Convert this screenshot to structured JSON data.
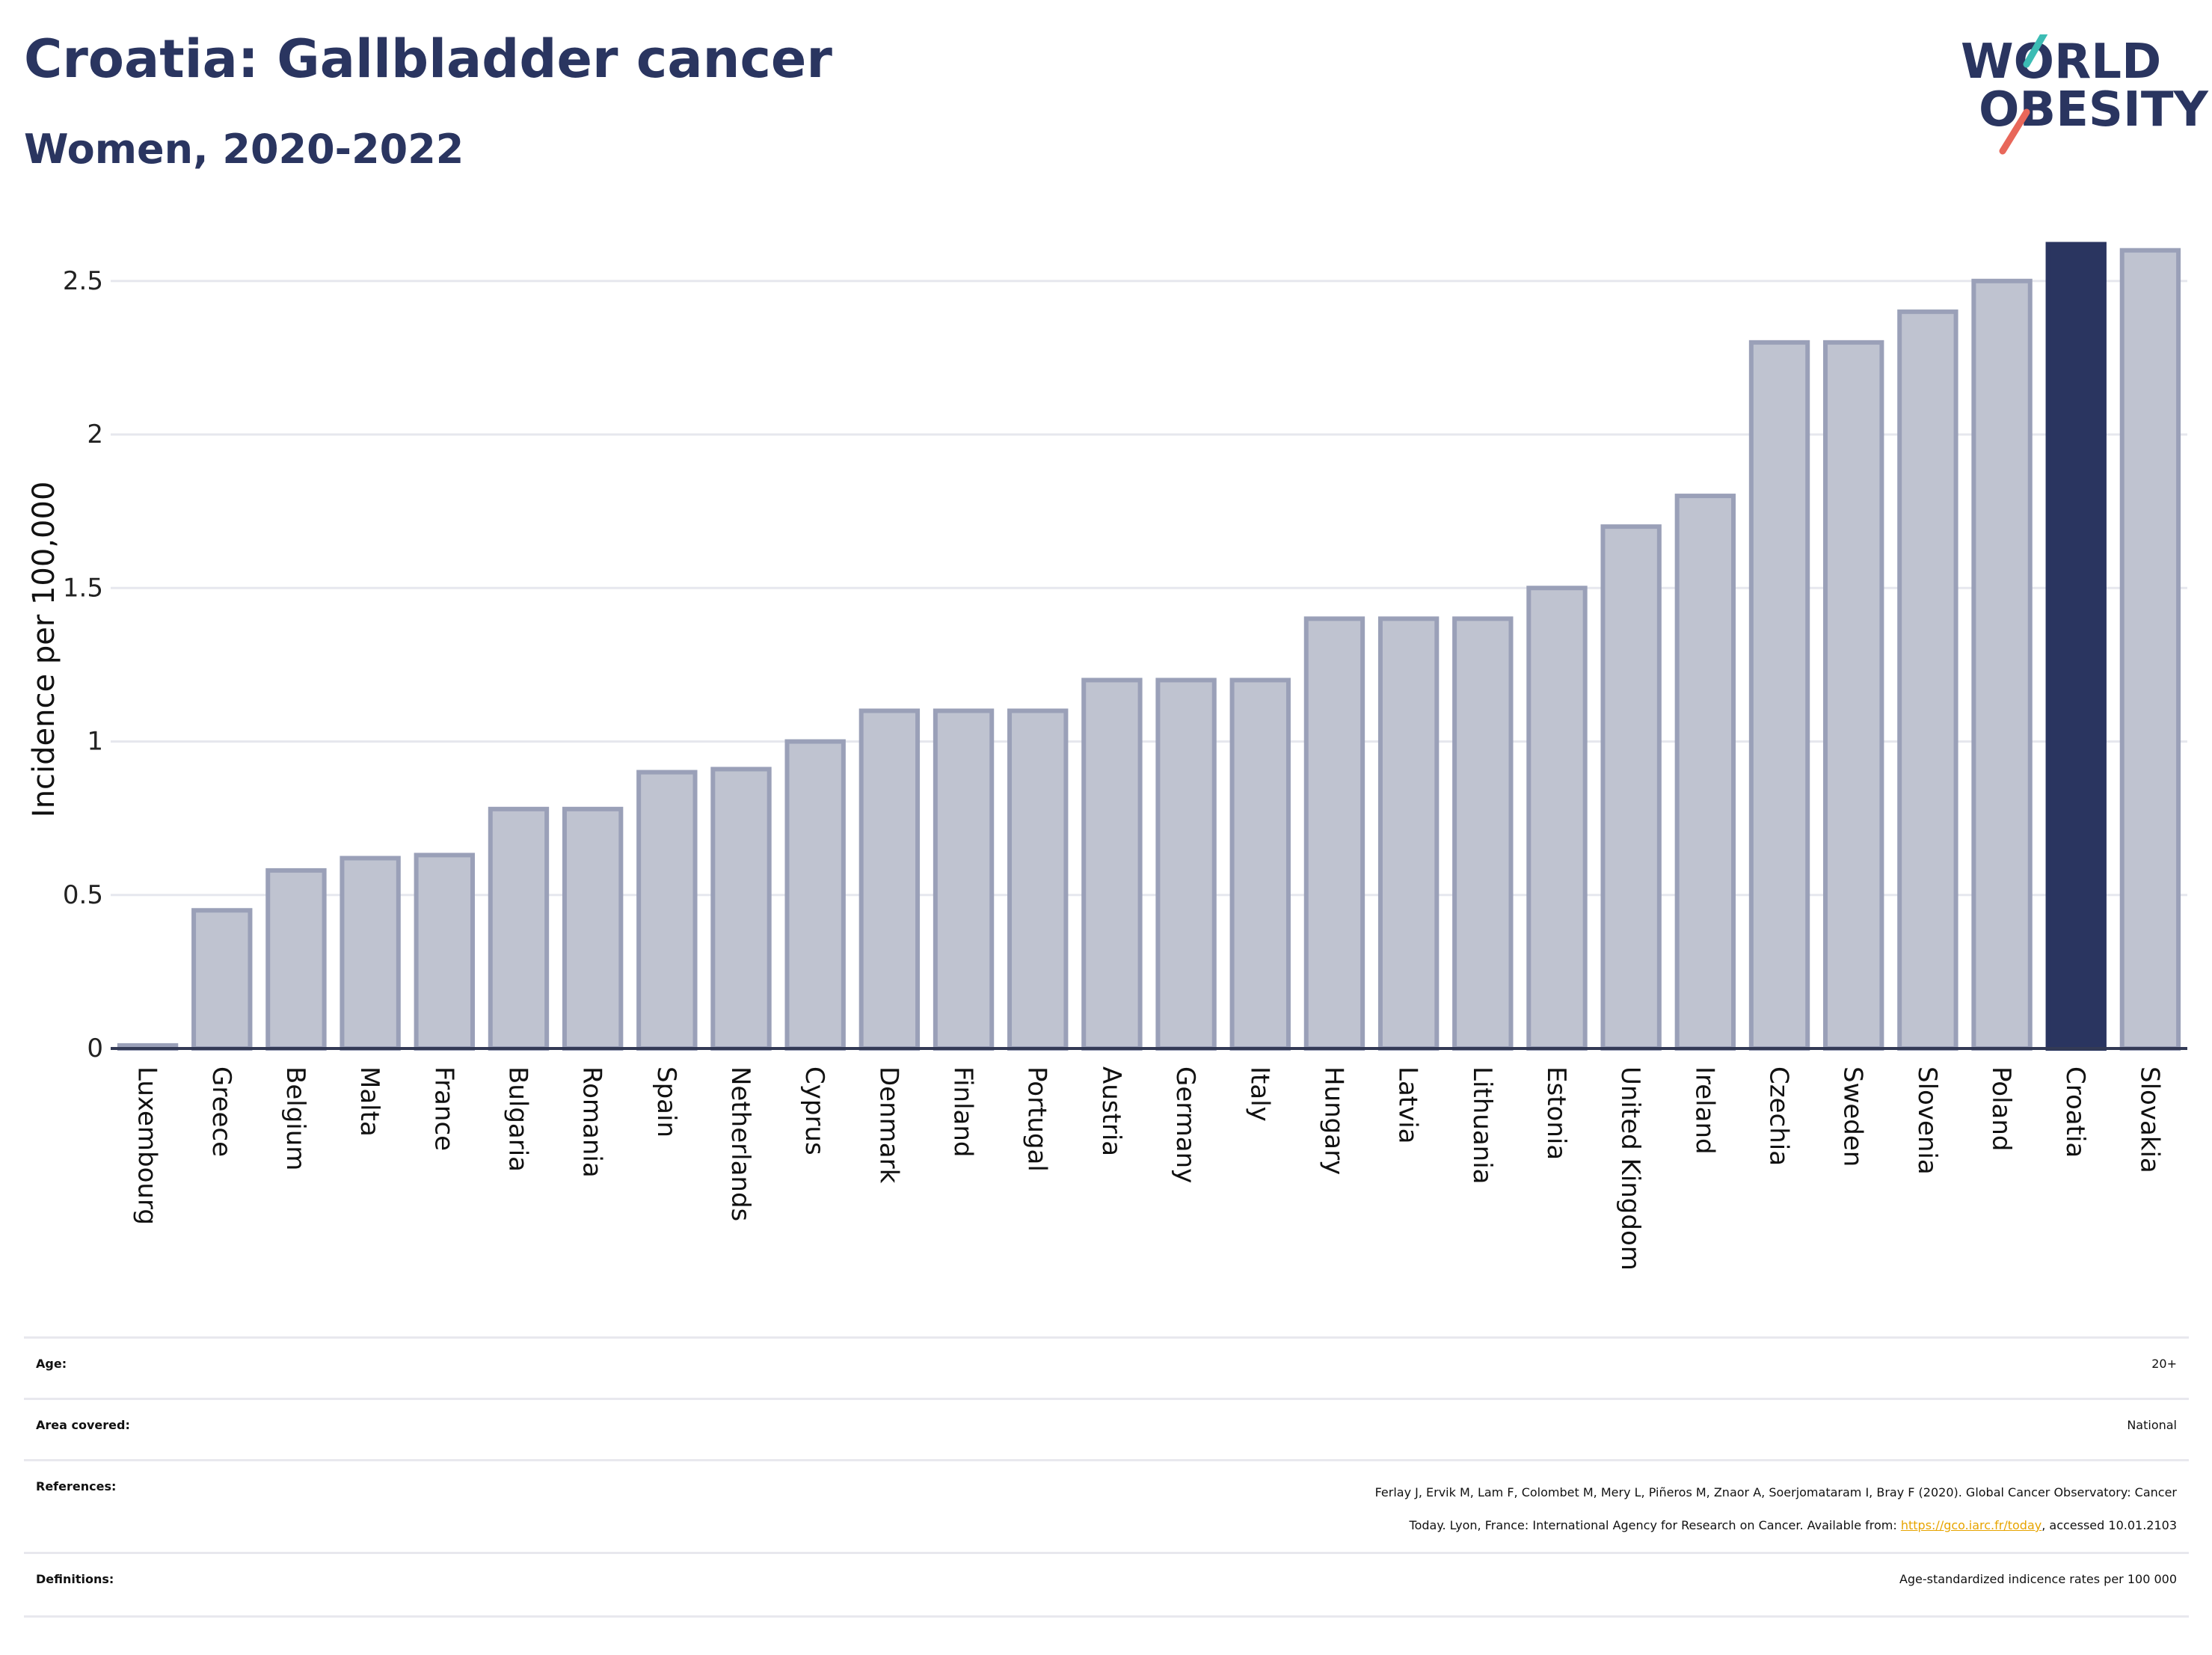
{
  "header": {
    "title": "Croatia: Gallbladder cancer",
    "subtitle": "Women, 2020-2022"
  },
  "logo": {
    "line1": "WORLD",
    "line2": "OBESITY",
    "slash_colors": [
      "#3cbcb4",
      "#e8675a"
    ]
  },
  "chart_data": {
    "type": "bar",
    "ylabel": "Incidence per 100,000",
    "ylim": [
      0,
      2.6
    ],
    "yticks": [
      0,
      0.5,
      1,
      1.5,
      2,
      2.5
    ],
    "ytick_labels": [
      "0",
      "0.5",
      "1",
      "1.5",
      "2",
      "2.5"
    ],
    "categories": [
      "Luxembourg",
      "Greece",
      "Belgium",
      "Malta",
      "France",
      "Bulgaria",
      "Romania",
      "Spain",
      "Netherlands",
      "Cyprus",
      "Denmark",
      "Finland",
      "Portugal",
      "Austria",
      "Germany",
      "Italy",
      "Hungary",
      "Latvia",
      "Lithuania",
      "Estonia",
      "United Kingdom",
      "Ireland",
      "Czechia",
      "Sweden",
      "Slovenia",
      "Poland",
      "Croatia",
      "Slovakia"
    ],
    "values": [
      0.01,
      0.45,
      0.58,
      0.62,
      0.63,
      0.78,
      0.78,
      0.9,
      0.91,
      1.0,
      1.1,
      1.1,
      1.1,
      1.2,
      1.2,
      1.2,
      1.4,
      1.4,
      1.4,
      1.5,
      1.7,
      1.8,
      2.3,
      2.3,
      2.4,
      2.5,
      2.62,
      2.6
    ],
    "highlight": "Croatia",
    "colors": {
      "bar": "#bfc3d0",
      "bar_border": "#9aa0b8",
      "highlight": "#2a3560",
      "grid": "#e6e7ee",
      "axis": "#333a55"
    },
    "grid": true
  },
  "meta": {
    "age_label": "Age:",
    "age_value": "20+",
    "area_label": "Area covered:",
    "area_value": "National",
    "references_label": "References:",
    "references_line1": "Ferlay J, Ervik M, Lam F, Colombet M, Mery L, Piñeros M, Znaor A, Soerjomataram I, Bray F (2020). Global Cancer Observatory: Cancer",
    "references_line2_pre": "Today. Lyon, France: International Agency for Research on Cancer. Available from: ",
    "references_link": "https://gco.iarc.fr/today",
    "references_line2_post": ", accessed 10.01.2103",
    "definitions_label": "Definitions:",
    "definitions_value": "Age-standardized indicence rates per 100 000"
  }
}
